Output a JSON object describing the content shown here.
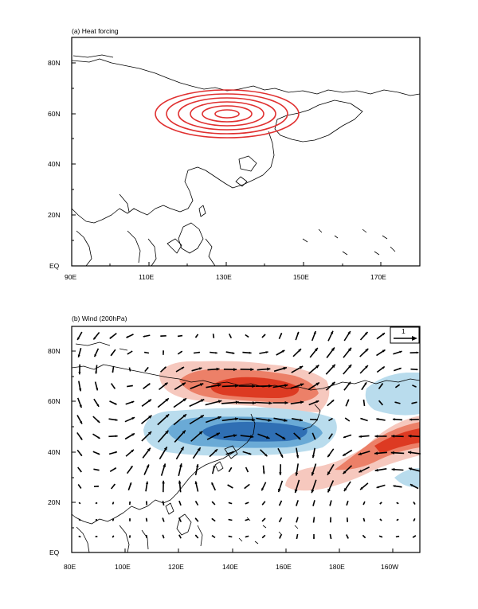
{
  "panel_a": {
    "title": "(a) Heat forcing",
    "lat_labels": [
      "80N",
      "60N",
      "40N",
      "20N",
      "EQ"
    ],
    "lon_labels": [
      "90E",
      "110E",
      "130E",
      "150E",
      "170E"
    ],
    "forcing_center": {
      "lon": 130,
      "lat": 60
    },
    "contour_count": 6,
    "contour_color": "#e03030"
  },
  "panel_b": {
    "title": "(b) Wind (200hPa)",
    "lat_labels": [
      "80N",
      "60N",
      "40N",
      "20N",
      "EQ"
    ],
    "lon_labels": [
      "80E",
      "100E",
      "120E",
      "140E",
      "160E",
      "180E",
      "160W"
    ],
    "ref_vector_label": "1",
    "positive_color": "#e8402a",
    "negative_color": "#3a7fc0"
  },
  "chart_data": [
    {
      "type": "map",
      "title": "(a) Heat forcing",
      "lon_range": [
        90,
        180
      ],
      "lat_range": [
        0,
        90
      ],
      "feature": "concentric positive heat-forcing contours centred near 130E, 60N"
    },
    {
      "type": "map",
      "title": "(b) Wind (200hPa)",
      "lon_range": [
        80,
        200
      ],
      "lat_range": [
        0,
        90
      ],
      "reference_vector": 1,
      "feature": "200hPa wind anomaly vectors with shaded positive anomaly near 60N (110E-170E) and 40N-50N (170E-160W), negative anomaly near 45N (110E-165E)"
    }
  ]
}
